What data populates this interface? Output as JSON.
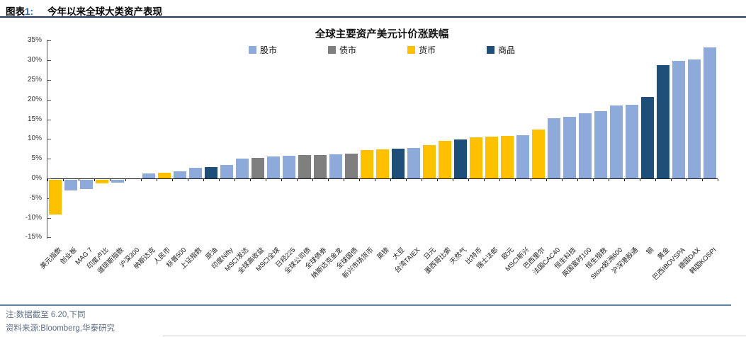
{
  "header": {
    "figure_label": "图表",
    "figure_number": "1:",
    "figure_title": "今年以来全球大类资产表现"
  },
  "chart": {
    "title": "全球主要资产美元计价涨跌幅",
    "legend": [
      {
        "label": "股市",
        "color": "#8EAADB"
      },
      {
        "label": "债市",
        "color": "#7F7F7F"
      },
      {
        "label": "货币",
        "color": "#FFC000"
      },
      {
        "label": "商品",
        "color": "#1F4E79"
      }
    ],
    "y_axis": {
      "ticks": [
        "35%",
        "30%",
        "25%",
        "20%",
        "15%",
        "10%",
        "5%",
        "0%",
        "-5%",
        "-10%",
        "-15%"
      ]
    }
  },
  "chart_data": {
    "type": "bar",
    "title": "全球主要资产美元计价涨跌幅",
    "ylim": [
      -15,
      35
    ],
    "ytick_step": 5,
    "grid": false,
    "legend_position": "top",
    "unit": "%",
    "categories": [
      "美元指数",
      "创业板",
      "MAG 7",
      "印度卢比",
      "道琼斯指数",
      "沪深300",
      "纳斯达克",
      "人民币",
      "标普500",
      "上证指数",
      "原油",
      "印度Nifty",
      "MSCI发达",
      "全球高收益",
      "MSCI全球",
      "日经225",
      "全球公司债",
      "全球债券",
      "纳斯达克金龙",
      "全球国债",
      "新兴市场货币",
      "英镑",
      "大豆",
      "台湾TAIEX",
      "日元",
      "墨西哥比索",
      "天然气",
      "比特币",
      "瑞士法郎",
      "欧元",
      "MSCI新兴",
      "巴西里尔",
      "法国CAC40",
      "恒生科技",
      "英国富时100",
      "恒生指数",
      "Stoxx欧洲600",
      "沪深港股通",
      "铜",
      "黄金",
      "巴西IBOVSPA",
      "德国DAX",
      "韩国KOSPI"
    ],
    "values": [
      -8.9,
      -2.7,
      -2.3,
      -0.9,
      -0.7,
      0.0,
      1.2,
      1.5,
      1.8,
      2.7,
      2.8,
      3.5,
      5.1,
      5.3,
      5.6,
      5.8,
      5.9,
      6.0,
      6.2,
      6.3,
      7.2,
      7.4,
      7.6,
      7.7,
      8.5,
      9.5,
      9.9,
      10.5,
      10.6,
      10.8,
      10.9,
      12.4,
      15.3,
      15.6,
      16.5,
      17.1,
      18.5,
      18.7,
      20.7,
      28.7,
      29.8,
      30.2,
      33.3
    ],
    "groups": [
      "货币",
      "股市",
      "股市",
      "货币",
      "股市",
      "股市",
      "股市",
      "货币",
      "股市",
      "股市",
      "商品",
      "股市",
      "股市",
      "债市",
      "股市",
      "股市",
      "债市",
      "债市",
      "股市",
      "债市",
      "货币",
      "货币",
      "商品",
      "股市",
      "货币",
      "货币",
      "商品",
      "货币",
      "货币",
      "货币",
      "股市",
      "货币",
      "股市",
      "股市",
      "股市",
      "股市",
      "股市",
      "股市",
      "商品",
      "商品",
      "股市",
      "股市",
      "股市"
    ]
  },
  "footer": {
    "note": "注:数据截至 6.20,下同",
    "source": "资料来源:Bloomberg,华泰研究"
  }
}
